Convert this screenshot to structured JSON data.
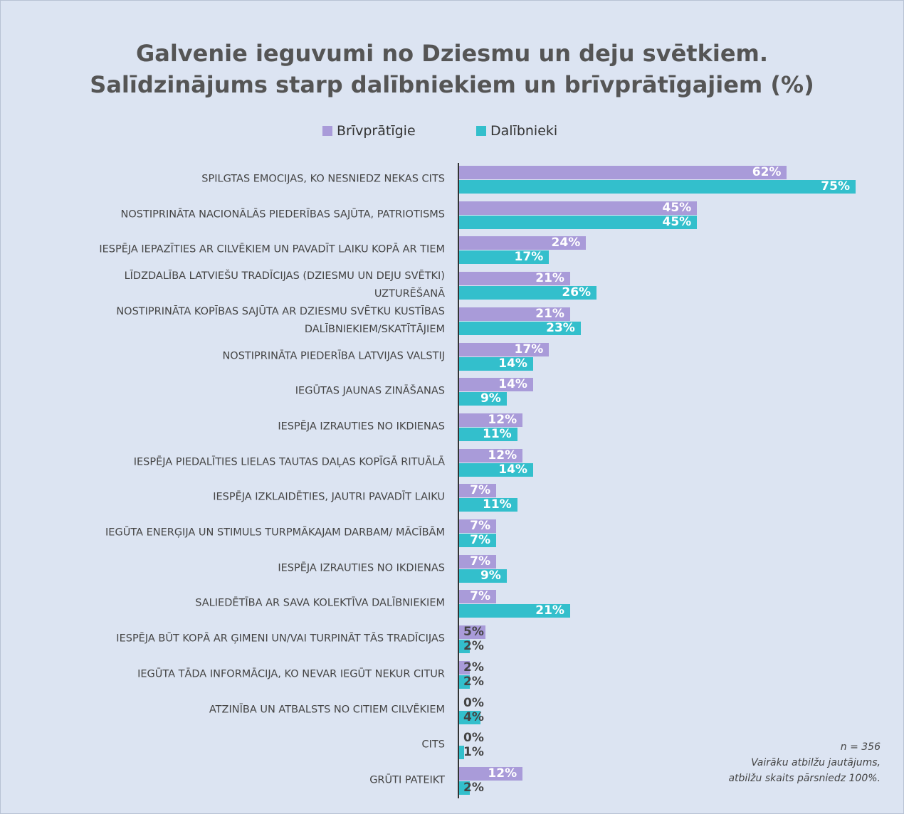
{
  "chart_data": {
    "type": "hbar",
    "title": "Galvenie ieguvumi no Dziesmu un deju svētkiem.\nSalīdzinājums starp dalībniekiem un brīvprātīgajiem (%)",
    "categories": [
      "SPILGTAS EMOCIJAS, KO NESNIEDZ NEKAS CITS",
      "NOSTIPRINĀTA NACIONĀLĀS PIEDERĪBAS SAJŪTA, PATRIOTISMS",
      "IESPĒJA IEPAZĪTIES AR CILVĒKIEM UN PAVADĪT LAIKU KOPĀ AR TIEM",
      "LĪDZDALĪBA LATVIEŠU TRADĪCIJAS (DZIESMU UN DEJU SVĒTKI)\nUZTURĒŠANĀ",
      "NOSTIPRINĀTA KOPĪBAS SAJŪTA AR DZIESMU SVĒTKU KUSTĪBAS\nDALĪBNIEKIEM/SKATĪTĀJIEM",
      "NOSTIPRINĀTA PIEDERĪBA LATVIJAS VALSTIJ",
      "IEGŪTAS JAUNAS ZINĀŠANAS",
      "IESPĒJA IZRAUTIES NO IKDIENAS",
      "IESPĒJA PIEDALĪTIES LIELAS TAUTAS DAĻAS KOPĪGĀ RITUĀLĀ",
      "IESPĒJA IZKLAIDĒTIES, JAUTRI PAVADĪT LAIKU",
      "IEGŪTA ENERĢIJA UN STIMULS TURPMĀKAJAM DARBAM/ MĀCĪBĀM",
      "IESPĒJA IZRAUTIES NO IKDIENAS",
      "SALIEDĒTĪBA AR SAVA KOLEKTĪVA DALĪBNIEKIEM",
      "IESPĒJA BŪT KOPĀ AR ĢIMENI UN/VAI TURPINĀT TĀS TRADĪCIJAS",
      "IEGŪTA TĀDA INFORMĀCIJA, KO NEVAR IEGŪT NEKUR CITUR",
      "ATZINĪBA UN ATBALSTS NO CITIEM CILVĒKIEM",
      "CITS",
      "GRŪTI PATEIKT"
    ],
    "series": [
      {
        "name": "Brīvprātīgie",
        "color": "#a99bd9",
        "values": [
          62,
          45,
          24,
          21,
          21,
          17,
          14,
          12,
          12,
          7,
          7,
          7,
          7,
          5,
          2,
          0,
          0,
          12
        ],
        "value_labels": [
          "62%",
          "45%",
          "24%",
          "21%",
          "21%",
          "17%",
          "14%",
          "12%",
          "12%",
          "7%",
          "7%",
          "7%",
          "7%",
          "5%",
          "2%",
          "0%",
          "0%",
          "12%"
        ]
      },
      {
        "name": "Dalībnieki",
        "color": "#33bfcc",
        "values": [
          75,
          45,
          17,
          26,
          23,
          14,
          9,
          11,
          14,
          11,
          7,
          9,
          21,
          2,
          2,
          4,
          1,
          2
        ],
        "value_labels": [
          "75%",
          "45%",
          "17%",
          "26%",
          "23%",
          "14%",
          "9%",
          "11%",
          "14%",
          "11%",
          "7%",
          "9%",
          "21%",
          "2%",
          "2%",
          "4%",
          "1%",
          "2%"
        ]
      }
    ],
    "notes": [
      "n = 356",
      "Vairāku atbilžu jautājums,\natbilžu skaits pārsniedz 100%."
    ]
  }
}
